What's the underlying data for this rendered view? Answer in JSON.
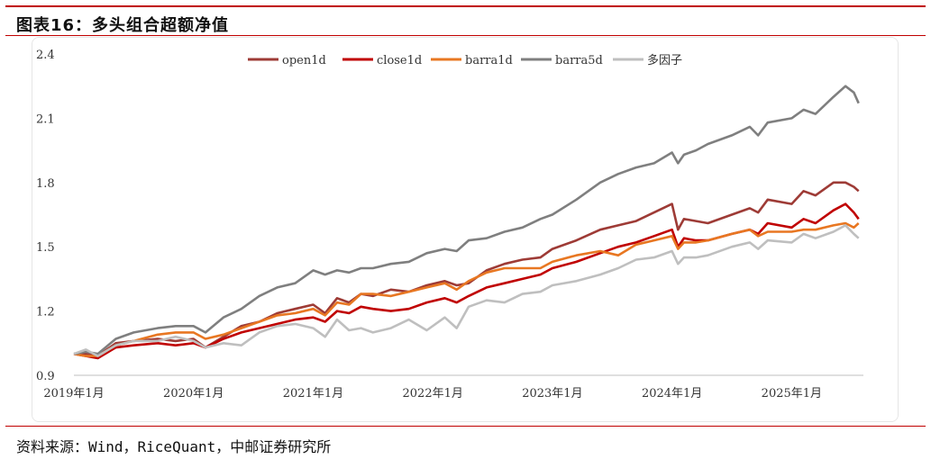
{
  "header": {
    "title": "图表16：多头组合超额净值"
  },
  "footer": {
    "source": "资料来源：Wind，RiceQuant，中邮证券研究所"
  },
  "chart_data": {
    "type": "line",
    "x_labels": [
      "2019年1月",
      "2020年1月",
      "2021年1月",
      "2022年1月",
      "2023年1月",
      "2024年1月",
      "2025年1月"
    ],
    "y_ticks": [
      0.9,
      1.2,
      1.5,
      1.8,
      2.1,
      2.4
    ],
    "ylim": [
      0.9,
      2.4
    ],
    "xlim": [
      2019.0,
      2025.6
    ],
    "legend_position": "top-center",
    "series": [
      {
        "name": "open1d",
        "color": "#9e3b36",
        "x": [
          2019.0,
          2019.1,
          2019.2,
          2019.35,
          2019.5,
          2019.7,
          2019.85,
          2020.0,
          2020.1,
          2020.25,
          2020.4,
          2020.55,
          2020.7,
          2020.85,
          2021.0,
          2021.1,
          2021.2,
          2021.3,
          2021.4,
          2021.5,
          2021.65,
          2021.8,
          2021.95,
          2022.1,
          2022.2,
          2022.3,
          2022.45,
          2022.6,
          2022.75,
          2022.9,
          2023.0,
          2023.2,
          2023.4,
          2023.55,
          2023.7,
          2023.85,
          2024.0,
          2024.05,
          2024.1,
          2024.2,
          2024.3,
          2024.5,
          2024.65,
          2024.72,
          2024.8,
          2025.0,
          2025.1,
          2025.2,
          2025.35,
          2025.45,
          2025.52,
          2025.56
        ],
        "values": [
          1.0,
          1.0,
          0.99,
          1.05,
          1.06,
          1.07,
          1.06,
          1.07,
          1.03,
          1.08,
          1.13,
          1.15,
          1.19,
          1.21,
          1.23,
          1.19,
          1.26,
          1.24,
          1.28,
          1.27,
          1.3,
          1.29,
          1.32,
          1.34,
          1.32,
          1.33,
          1.39,
          1.42,
          1.44,
          1.45,
          1.49,
          1.53,
          1.58,
          1.6,
          1.62,
          1.66,
          1.7,
          1.58,
          1.63,
          1.62,
          1.61,
          1.65,
          1.68,
          1.66,
          1.72,
          1.7,
          1.76,
          1.74,
          1.8,
          1.8,
          1.78,
          1.76
        ]
      },
      {
        "name": "close1d",
        "color": "#c00000",
        "x": [
          2019.0,
          2019.1,
          2019.2,
          2019.35,
          2019.5,
          2019.7,
          2019.85,
          2020.0,
          2020.1,
          2020.25,
          2020.4,
          2020.55,
          2020.7,
          2020.85,
          2021.0,
          2021.1,
          2021.2,
          2021.3,
          2021.4,
          2021.5,
          2021.65,
          2021.8,
          2021.95,
          2022.1,
          2022.2,
          2022.3,
          2022.45,
          2022.6,
          2022.75,
          2022.9,
          2023.0,
          2023.2,
          2023.4,
          2023.55,
          2023.7,
          2023.85,
          2024.0,
          2024.05,
          2024.1,
          2024.2,
          2024.3,
          2024.5,
          2024.65,
          2024.72,
          2024.8,
          2025.0,
          2025.1,
          2025.2,
          2025.35,
          2025.45,
          2025.52,
          2025.56
        ],
        "values": [
          1.0,
          0.99,
          0.98,
          1.03,
          1.04,
          1.05,
          1.04,
          1.05,
          1.03,
          1.07,
          1.1,
          1.12,
          1.14,
          1.16,
          1.17,
          1.15,
          1.2,
          1.19,
          1.22,
          1.21,
          1.2,
          1.21,
          1.24,
          1.26,
          1.24,
          1.27,
          1.31,
          1.33,
          1.35,
          1.37,
          1.4,
          1.43,
          1.47,
          1.5,
          1.52,
          1.55,
          1.58,
          1.5,
          1.54,
          1.53,
          1.53,
          1.56,
          1.58,
          1.56,
          1.61,
          1.59,
          1.63,
          1.61,
          1.67,
          1.7,
          1.66,
          1.63
        ]
      },
      {
        "name": "barra1d",
        "color": "#e87722",
        "x": [
          2019.0,
          2019.1,
          2019.2,
          2019.35,
          2019.5,
          2019.7,
          2019.85,
          2020.0,
          2020.1,
          2020.25,
          2020.4,
          2020.55,
          2020.7,
          2020.85,
          2021.0,
          2021.1,
          2021.2,
          2021.3,
          2021.4,
          2021.5,
          2021.65,
          2021.8,
          2021.95,
          2022.1,
          2022.2,
          2022.3,
          2022.45,
          2022.6,
          2022.75,
          2022.9,
          2023.0,
          2023.2,
          2023.4,
          2023.55,
          2023.7,
          2023.85,
          2024.0,
          2024.05,
          2024.1,
          2024.2,
          2024.3,
          2024.5,
          2024.65,
          2024.72,
          2024.8,
          2025.0,
          2025.1,
          2025.2,
          2025.35,
          2025.45,
          2025.52,
          2025.56
        ],
        "values": [
          1.0,
          0.99,
          0.99,
          1.04,
          1.06,
          1.09,
          1.1,
          1.1,
          1.07,
          1.09,
          1.12,
          1.15,
          1.18,
          1.19,
          1.21,
          1.18,
          1.24,
          1.23,
          1.28,
          1.28,
          1.27,
          1.29,
          1.31,
          1.33,
          1.3,
          1.34,
          1.38,
          1.4,
          1.4,
          1.4,
          1.43,
          1.46,
          1.48,
          1.46,
          1.51,
          1.53,
          1.55,
          1.49,
          1.52,
          1.52,
          1.53,
          1.56,
          1.58,
          1.55,
          1.57,
          1.57,
          1.58,
          1.58,
          1.6,
          1.61,
          1.59,
          1.61
        ]
      },
      {
        "name": "barra5d",
        "color": "#7f7f7f",
        "x": [
          2019.0,
          2019.1,
          2019.2,
          2019.35,
          2019.5,
          2019.7,
          2019.85,
          2020.0,
          2020.1,
          2020.25,
          2020.4,
          2020.55,
          2020.7,
          2020.85,
          2021.0,
          2021.1,
          2021.2,
          2021.3,
          2021.4,
          2021.5,
          2021.65,
          2021.8,
          2021.95,
          2022.1,
          2022.2,
          2022.3,
          2022.45,
          2022.6,
          2022.75,
          2022.9,
          2023.0,
          2023.2,
          2023.4,
          2023.55,
          2023.7,
          2023.85,
          2024.0,
          2024.05,
          2024.1,
          2024.2,
          2024.3,
          2024.5,
          2024.65,
          2024.72,
          2024.8,
          2025.0,
          2025.1,
          2025.2,
          2025.35,
          2025.45,
          2025.52,
          2025.56
        ],
        "values": [
          1.0,
          1.01,
          1.0,
          1.07,
          1.1,
          1.12,
          1.13,
          1.13,
          1.1,
          1.17,
          1.21,
          1.27,
          1.31,
          1.33,
          1.39,
          1.37,
          1.39,
          1.38,
          1.4,
          1.4,
          1.42,
          1.43,
          1.47,
          1.49,
          1.48,
          1.53,
          1.54,
          1.57,
          1.59,
          1.63,
          1.65,
          1.72,
          1.8,
          1.84,
          1.87,
          1.89,
          1.94,
          1.89,
          1.93,
          1.95,
          1.98,
          2.02,
          2.06,
          2.02,
          2.08,
          2.1,
          2.14,
          2.12,
          2.2,
          2.25,
          2.22,
          2.17
        ]
      },
      {
        "name": "多因子",
        "color": "#bfbfbf",
        "x": [
          2019.0,
          2019.1,
          2019.2,
          2019.35,
          2019.5,
          2019.7,
          2019.85,
          2020.0,
          2020.1,
          2020.25,
          2020.4,
          2020.55,
          2020.7,
          2020.85,
          2021.0,
          2021.1,
          2021.2,
          2021.3,
          2021.4,
          2021.5,
          2021.65,
          2021.8,
          2021.95,
          2022.1,
          2022.2,
          2022.3,
          2022.45,
          2022.6,
          2022.75,
          2022.9,
          2023.0,
          2023.2,
          2023.4,
          2023.55,
          2023.7,
          2023.85,
          2024.0,
          2024.05,
          2024.1,
          2024.2,
          2024.3,
          2024.5,
          2024.65,
          2024.72,
          2024.8,
          2025.0,
          2025.1,
          2025.2,
          2025.35,
          2025.45,
          2025.52,
          2025.56
        ],
        "values": [
          1.0,
          1.02,
          0.99,
          1.04,
          1.06,
          1.06,
          1.08,
          1.06,
          1.03,
          1.05,
          1.04,
          1.1,
          1.13,
          1.14,
          1.12,
          1.08,
          1.16,
          1.11,
          1.12,
          1.1,
          1.12,
          1.16,
          1.11,
          1.17,
          1.12,
          1.22,
          1.25,
          1.24,
          1.28,
          1.29,
          1.32,
          1.34,
          1.37,
          1.4,
          1.44,
          1.45,
          1.48,
          1.42,
          1.45,
          1.45,
          1.46,
          1.5,
          1.52,
          1.49,
          1.53,
          1.52,
          1.56,
          1.54,
          1.57,
          1.6,
          1.56,
          1.54
        ]
      }
    ]
  }
}
